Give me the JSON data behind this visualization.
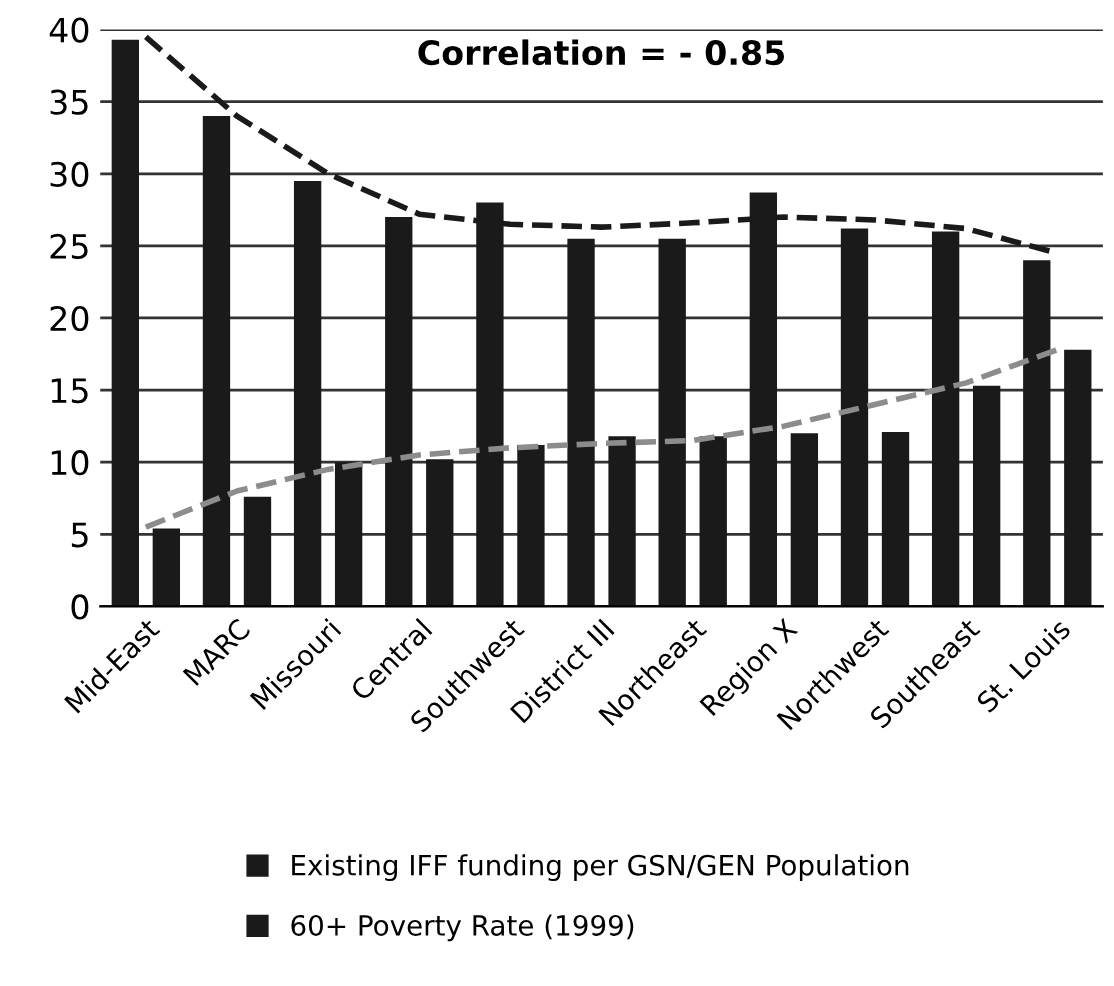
{
  "chart_data": {
    "type": "bar",
    "categories": [
      "Mid-East",
      "MARC",
      "Missouri",
      "Central",
      "Southwest",
      "District III",
      "Northeast",
      "Region X",
      "Northwest",
      "Southeast",
      "St. Louis"
    ],
    "series": [
      {
        "name": "Existing IFF funding per GSN/GEN Population",
        "color": "#1a1a1a",
        "values": [
          39.3,
          34,
          29.5,
          27,
          28,
          25.5,
          25.5,
          28.7,
          26.2,
          26,
          24
        ]
      },
      {
        "name": "60+ Poverty Rate (1999)",
        "color": "#1a1a1a",
        "values": [
          5.4,
          7.6,
          10,
          10.2,
          11.2,
          11.8,
          11.8,
          12,
          12.1,
          15.3,
          17.8
        ]
      },
      {
        "type": "line",
        "color": "#1a1a1a",
        "line_style": "dashed",
        "values": [
          39.5,
          34,
          30,
          27.2,
          26.5,
          26.3,
          26.6,
          27,
          26.8,
          26.2,
          24.5
        ]
      },
      {
        "type": "line",
        "color": "#8c8c8c",
        "line_style": "dashed",
        "values": [
          5.5,
          8,
          9.5,
          10.5,
          11,
          11.3,
          11.5,
          12.5,
          14,
          15.5,
          17.8
        ]
      }
    ],
    "ylim": [
      0,
      40
    ],
    "yticks": [
      0,
      5,
      10,
      15,
      20,
      25,
      30,
      35,
      40
    ],
    "grid": "y",
    "legend": "bottom",
    "annotations": [
      "Correlation = - 0.85"
    ]
  }
}
